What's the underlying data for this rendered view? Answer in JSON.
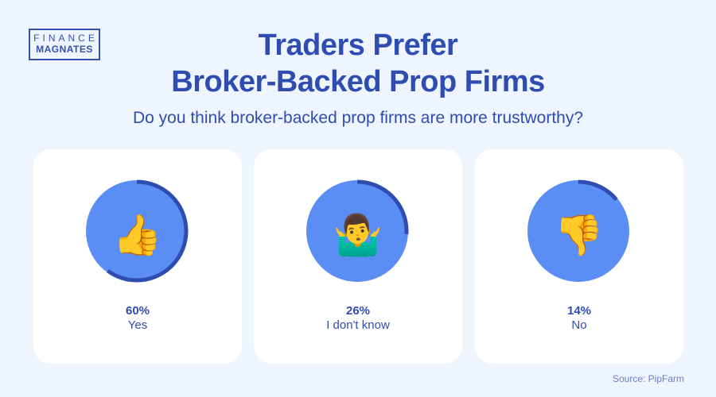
{
  "logo": {
    "line1": "FINANCE",
    "line2": "MAGNATES"
  },
  "title_line1": "Traders Prefer",
  "title_line2": "Broker-Backed Prop Firms",
  "subtitle": "Do you think broker-backed prop firms are more trustworthy?",
  "source": "Source: PipFarm",
  "colors": {
    "accent": "#2f4db0",
    "circle": "#5b8ef5",
    "ring": "#2f4db0",
    "background": "#eef5fe"
  },
  "chart_data": {
    "type": "pie",
    "title": "Do you think broker-backed prop firms are more trustworthy?",
    "categories": [
      "Yes",
      "I don't know",
      "No"
    ],
    "values": [
      60,
      26,
      14
    ],
    "value_labels": [
      "60%",
      "26%",
      "14%"
    ],
    "icons": [
      "thumbs-up-icon",
      "shrug-icon",
      "thumbs-down-icon"
    ]
  }
}
